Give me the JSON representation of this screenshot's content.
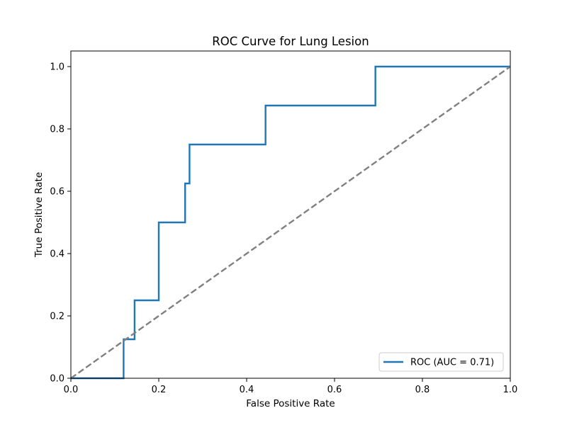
{
  "chart_data": {
    "type": "line",
    "title": "ROC Curve for Lung Lesion",
    "xlabel": "False Positive Rate",
    "ylabel": "True Positive Rate",
    "xlim": [
      0.0,
      1.0
    ],
    "ylim": [
      0.0,
      1.05
    ],
    "xticks": [
      "0.0",
      "0.2",
      "0.4",
      "0.6",
      "0.8",
      "1.0"
    ],
    "yticks": [
      "0.0",
      "0.2",
      "0.4",
      "0.6",
      "0.8",
      "1.0"
    ],
    "grid": false,
    "legend_position": "lower-right",
    "series": [
      {
        "name": "ROC (AUC = 0.71)",
        "color": "#1f77b4",
        "style": "solid",
        "x": [
          0.0,
          0.12,
          0.12,
          0.145,
          0.145,
          0.2,
          0.2,
          0.26,
          0.26,
          0.27,
          0.27,
          0.443,
          0.443,
          0.693,
          0.693,
          1.0
        ],
        "y": [
          0.0,
          0.0,
          0.125,
          0.125,
          0.25,
          0.25,
          0.5,
          0.5,
          0.625,
          0.625,
          0.75,
          0.75,
          0.875,
          0.875,
          1.0,
          1.0
        ]
      },
      {
        "color": "#808080",
        "style": "dashed",
        "x": [
          0.0,
          1.0
        ],
        "y": [
          0.0,
          1.0
        ]
      }
    ]
  }
}
